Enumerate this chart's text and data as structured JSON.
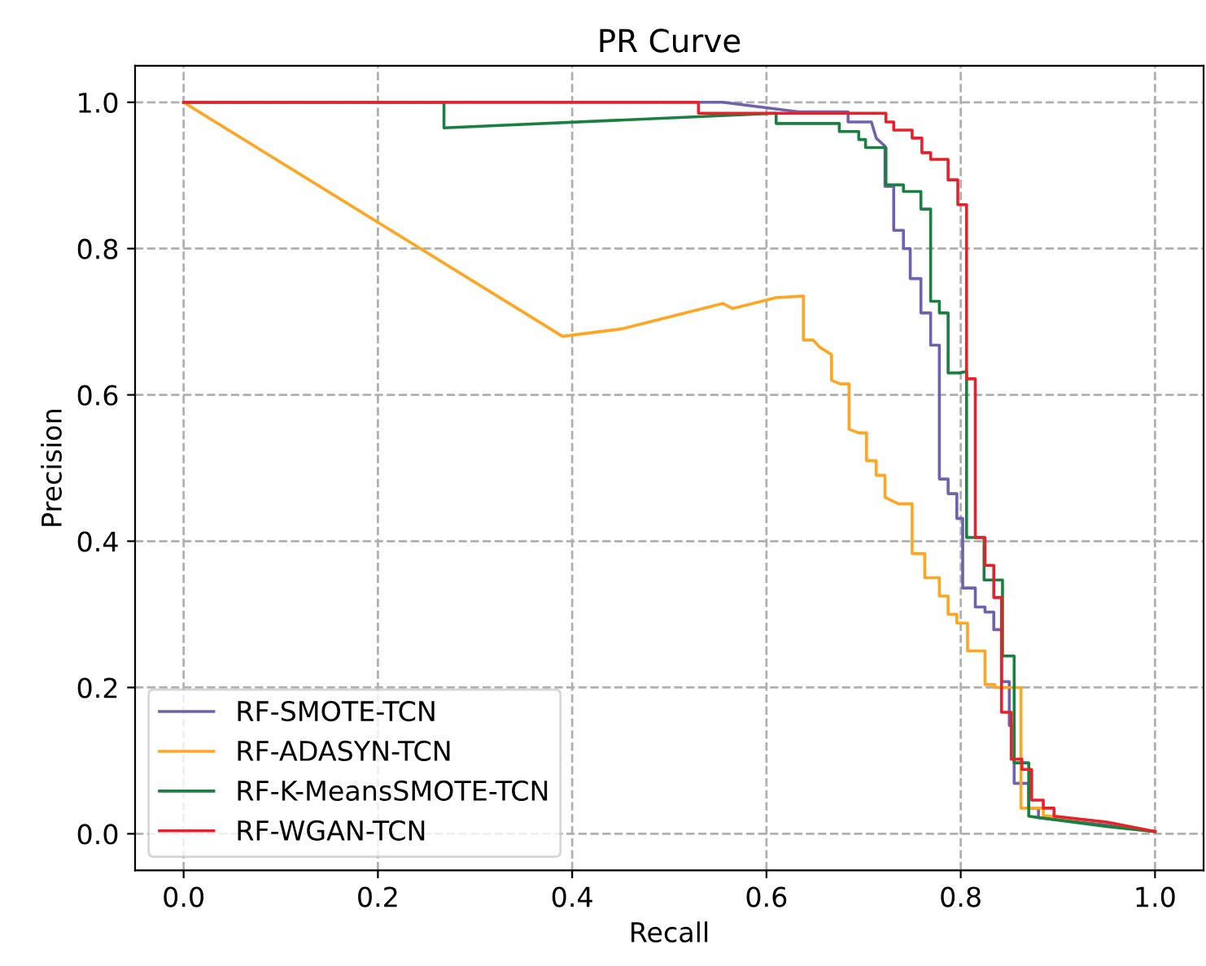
{
  "chart_data": {
    "type": "line",
    "title": "PR Curve",
    "xlabel": "Recall",
    "ylabel": "Precision",
    "xlim": [
      -0.05,
      1.05
    ],
    "ylim": [
      -0.05,
      1.05
    ],
    "xticks": [
      {
        "value": 0,
        "label": "0.0"
      },
      {
        "value": 0.2,
        "label": "0.2"
      },
      {
        "value": 0.4,
        "label": "0.4"
      },
      {
        "value": 0.6,
        "label": "0.6"
      },
      {
        "value": 0.8,
        "label": "0.8"
      },
      {
        "value": 1,
        "label": "1.0"
      }
    ],
    "yticks": [
      {
        "value": 0,
        "label": "0.0"
      },
      {
        "value": 0.2,
        "label": "0.2"
      },
      {
        "value": 0.4,
        "label": "0.4"
      },
      {
        "value": 0.6,
        "label": "0.6"
      },
      {
        "value": 0.8,
        "label": "0.8"
      },
      {
        "value": 1,
        "label": "1.0"
      }
    ],
    "grid": true,
    "legend": "bottom left",
    "line_style": "solid",
    "marker": "none",
    "series": [
      {
        "name": "RF-SMOTE-TCN",
        "color": "#7060b0",
        "x": [
          0,
          0.555,
          0.633,
          0.684,
          0.684,
          0.708,
          0.713,
          0.722,
          0.722,
          0.731,
          0.731,
          0.741,
          0.741,
          0.748,
          0.748,
          0.759,
          0.759,
          0.769,
          0.769,
          0.778,
          0.778,
          0.787,
          0.787,
          0.796,
          0.796,
          0.802,
          0.802,
          0.815,
          0.815,
          0.825,
          0.825,
          0.834,
          0.834,
          0.842,
          0.842,
          0.85,
          0.85,
          0.855,
          0.855,
          0.87,
          0.87,
          0.88,
          0.88,
          0.95,
          1.0
        ],
        "values": [
          1.0,
          1.0,
          0.987,
          0.987,
          0.973,
          0.973,
          0.951,
          0.94,
          0.885,
          0.885,
          0.825,
          0.825,
          0.8,
          0.8,
          0.759,
          0.759,
          0.712,
          0.712,
          0.668,
          0.668,
          0.485,
          0.485,
          0.465,
          0.465,
          0.431,
          0.431,
          0.336,
          0.336,
          0.31,
          0.31,
          0.303,
          0.303,
          0.279,
          0.279,
          0.208,
          0.208,
          0.148,
          0.148,
          0.069,
          0.069,
          0.035,
          0.035,
          0.022,
          0.012,
          0.003
        ]
      },
      {
        "name": "RF-ADASYN-TCN",
        "color": "#ffa520",
        "x": [
          0,
          0.39,
          0.45,
          0.555,
          0.565,
          0.61,
          0.638,
          0.638,
          0.648,
          0.655,
          0.667,
          0.667,
          0.676,
          0.685,
          0.685,
          0.695,
          0.703,
          0.703,
          0.713,
          0.713,
          0.722,
          0.722,
          0.736,
          0.75,
          0.75,
          0.763,
          0.763,
          0.778,
          0.778,
          0.787,
          0.787,
          0.796,
          0.796,
          0.807,
          0.807,
          0.825,
          0.825,
          0.835,
          0.835,
          0.862,
          0.862,
          0.885,
          0.885,
          0.95,
          1.0
        ],
        "values": [
          1.0,
          0.68,
          0.69,
          0.725,
          0.718,
          0.733,
          0.735,
          0.675,
          0.675,
          0.665,
          0.655,
          0.62,
          0.615,
          0.615,
          0.553,
          0.548,
          0.548,
          0.51,
          0.51,
          0.49,
          0.49,
          0.46,
          0.451,
          0.451,
          0.383,
          0.383,
          0.35,
          0.35,
          0.325,
          0.325,
          0.3,
          0.3,
          0.288,
          0.288,
          0.25,
          0.25,
          0.204,
          0.204,
          0.2,
          0.2,
          0.035,
          0.035,
          0.025,
          0.016,
          0.003
        ]
      },
      {
        "name": "RF-K-MeansSMOTE-TCN",
        "color": "#1a8040",
        "x": [
          0,
          0.268,
          0.268,
          0.61,
          0.61,
          0.675,
          0.675,
          0.695,
          0.695,
          0.702,
          0.702,
          0.723,
          0.723,
          0.741,
          0.741,
          0.759,
          0.759,
          0.769,
          0.769,
          0.778,
          0.778,
          0.787,
          0.787,
          0.799,
          0.806,
          0.806,
          0.824,
          0.824,
          0.843,
          0.843,
          0.855,
          0.855,
          0.87,
          0.87,
          0.95,
          1.0
        ],
        "values": [
          1.0,
          1.0,
          0.965,
          0.985,
          0.971,
          0.971,
          0.96,
          0.96,
          0.949,
          0.949,
          0.938,
          0.938,
          0.887,
          0.887,
          0.878,
          0.878,
          0.854,
          0.854,
          0.728,
          0.728,
          0.712,
          0.712,
          0.63,
          0.63,
          0.632,
          0.405,
          0.405,
          0.347,
          0.347,
          0.243,
          0.243,
          0.097,
          0.097,
          0.024,
          0.01,
          0.003
        ]
      },
      {
        "name": "RF-WGAN-TCN",
        "color": "#e8202a",
        "x": [
          0,
          0.53,
          0.53,
          0.723,
          0.723,
          0.731,
          0.731,
          0.75,
          0.75,
          0.76,
          0.76,
          0.769,
          0.769,
          0.787,
          0.787,
          0.797,
          0.797,
          0.806,
          0.806,
          0.815,
          0.815,
          0.825,
          0.825,
          0.834,
          0.834,
          0.842,
          0.842,
          0.852,
          0.852,
          0.863,
          0.863,
          0.873,
          0.873,
          0.885,
          0.885,
          0.896,
          0.896,
          0.95,
          1.0
        ],
        "values": [
          1.0,
          1.0,
          0.985,
          0.985,
          0.973,
          0.973,
          0.962,
          0.962,
          0.951,
          0.951,
          0.931,
          0.931,
          0.922,
          0.922,
          0.894,
          0.894,
          0.86,
          0.86,
          0.622,
          0.622,
          0.405,
          0.405,
          0.367,
          0.367,
          0.323,
          0.323,
          0.166,
          0.166,
          0.102,
          0.102,
          0.088,
          0.088,
          0.046,
          0.046,
          0.035,
          0.035,
          0.024,
          0.016,
          0.003
        ]
      }
    ]
  }
}
